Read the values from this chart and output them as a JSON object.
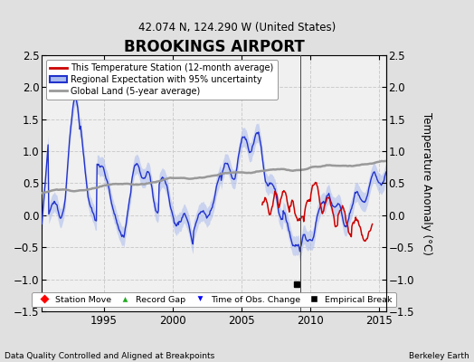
{
  "title": "BROOKINGS AIRPORT",
  "subtitle": "42.074 N, 124.290 W (United States)",
  "ylabel": "Temperature Anomaly (°C)",
  "xlabel_left": "Data Quality Controlled and Aligned at Breakpoints",
  "xlabel_right": "Berkeley Earth",
  "ylim": [
    -1.5,
    2.5
  ],
  "xlim": [
    1990.5,
    2015.5
  ],
  "yticks": [
    -1.5,
    -1.0,
    -0.5,
    0.0,
    0.5,
    1.0,
    1.5,
    2.0,
    2.5
  ],
  "xticks": [
    1995,
    2000,
    2005,
    2010,
    2015
  ],
  "background_color": "#e0e0e0",
  "plot_bg_color": "#f0f0f0",
  "grid_color": "#cccccc",
  "empirical_break_x": 2009.0,
  "empirical_break_y": -1.08,
  "vertical_line_x": 2009.25,
  "station_color": "#cc0000",
  "regional_color": "#2233cc",
  "regional_fill_color": "#aabbee",
  "global_color": "#999999",
  "legend_entries": [
    "This Temperature Station (12-month average)",
    "Regional Expectation with 95% uncertainty",
    "Global Land (5-year average)"
  ],
  "legend2_entries": [
    "Station Move",
    "Record Gap",
    "Time of Obs. Change",
    "Empirical Break"
  ]
}
